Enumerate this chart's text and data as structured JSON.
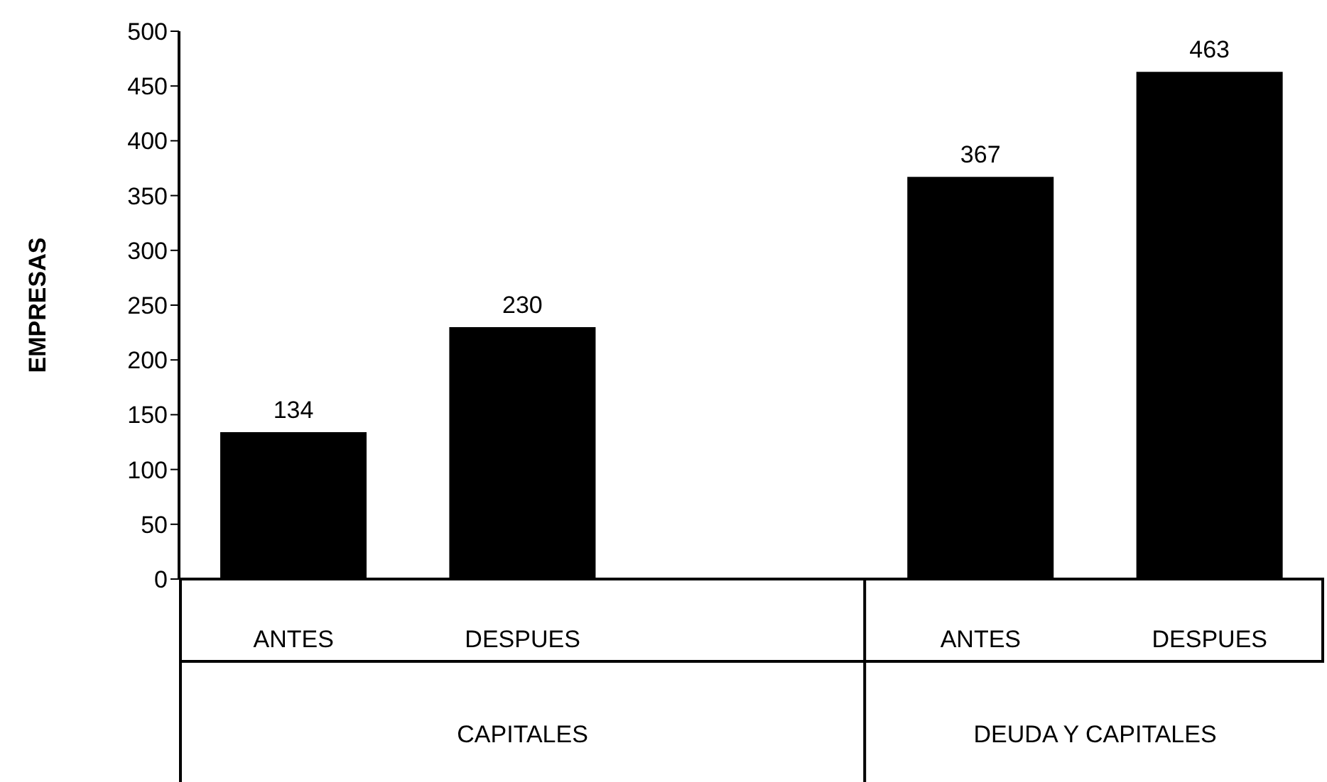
{
  "chart_data": {
    "type": "bar",
    "ylabel": "EMPRESAS",
    "categories": [
      "ANTES",
      "DESPUES",
      null,
      "ANTES",
      "DESPUES"
    ],
    "values": [
      134,
      230,
      null,
      367,
      463
    ],
    "color": "#000000",
    "ylim": [
      0,
      500
    ],
    "yticks": [
      0,
      50,
      100,
      150,
      200,
      250,
      300,
      350,
      400,
      450,
      500
    ],
    "data_labels": true,
    "grid": false,
    "legend": false,
    "annotations": [
      "CAPITALES",
      "DEUDA Y CAPITALES"
    ]
  }
}
